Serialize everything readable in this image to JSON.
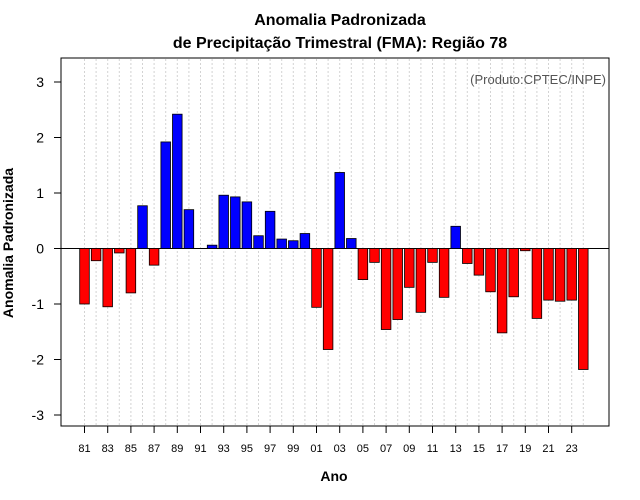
{
  "chart_data": {
    "type": "bar",
    "title": "Anomalia Padronizada",
    "subtitle": "de Precipitação Trimestral (FMA): Região 78",
    "xlabel": "Ano",
    "ylabel": "Anomalia Padronizada",
    "annotation": "(Produto:CPTEC/INPE)",
    "ylim": [
      -3.2,
      3.4
    ],
    "yticks": [
      -3,
      -2,
      -1,
      0,
      1,
      2,
      3
    ],
    "ytick_labels": [
      "-3",
      "-2",
      "-1",
      "0",
      "1",
      "2",
      "3"
    ],
    "grid": "vertical dashed",
    "positive_color": "#0000ff",
    "negative_color": "#ff0000",
    "x_tick_labels": [
      "81",
      "83",
      "85",
      "87",
      "89",
      "91",
      "93",
      "95",
      "97",
      "99",
      "01",
      "03",
      "05",
      "07",
      "09",
      "11",
      "13",
      "15",
      "17",
      "19",
      "21",
      "23"
    ],
    "categories": [
      "1981",
      "1982",
      "1983",
      "1984",
      "1985",
      "1986",
      "1987",
      "1988",
      "1989",
      "1990",
      "1991",
      "1992",
      "1993",
      "1994",
      "1995",
      "1996",
      "1997",
      "1998",
      "1999",
      "2000",
      "2001",
      "2002",
      "2003",
      "2004",
      "2005",
      "2006",
      "2007",
      "2008",
      "2009",
      "2010",
      "2011",
      "2012",
      "2013",
      "2014",
      "2015",
      "2016",
      "2017",
      "2018",
      "2019",
      "2020",
      "2021",
      "2022",
      "2023",
      "2024"
    ],
    "values": [
      -1.0,
      -0.22,
      -1.05,
      -0.08,
      -0.8,
      0.77,
      -0.3,
      1.92,
      2.42,
      0.7,
      0.0,
      0.06,
      0.96,
      0.93,
      0.84,
      0.23,
      0.67,
      0.17,
      0.14,
      0.27,
      -1.06,
      -1.82,
      1.37,
      0.18,
      -0.56,
      -0.25,
      -1.46,
      -1.28,
      -0.7,
      -1.15,
      -0.25,
      -0.88,
      0.4,
      -0.27,
      -0.48,
      -0.78,
      -1.52,
      -0.87,
      -0.04,
      -1.26,
      -0.93,
      -0.95,
      -0.93,
      -2.18
    ]
  }
}
